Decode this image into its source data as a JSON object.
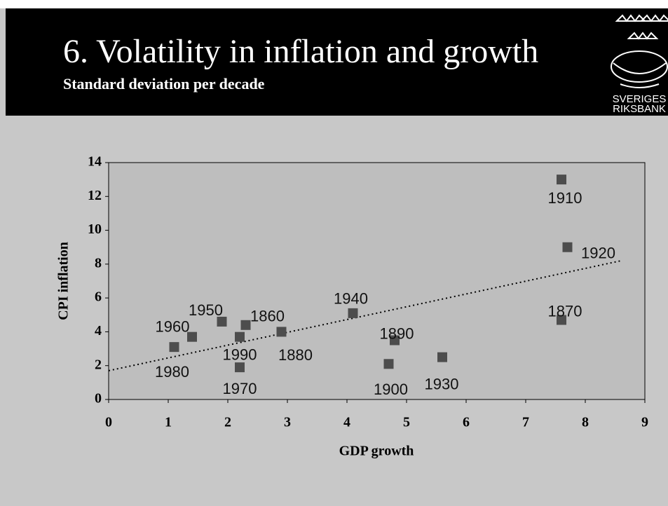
{
  "chart_data": {
    "type": "scatter",
    "title": "6. Volatility in inflation and growth",
    "subtitle": "Standard deviation per decade",
    "xlabel": "GDP growth",
    "ylabel": "CPI inflation",
    "point_labels": [
      "1910",
      "1920",
      "1870",
      "1940",
      "1890",
      "1900",
      "1930",
      "1880",
      "1860",
      "1950",
      "1990",
      "1970",
      "1960",
      "1980"
    ],
    "x": [
      7.6,
      7.7,
      7.6,
      4.1,
      4.8,
      4.7,
      5.6,
      2.9,
      2.3,
      1.9,
      2.2,
      2.2,
      1.4,
      1.1
    ],
    "y": [
      13.0,
      9.0,
      4.7,
      5.1,
      3.5,
      2.1,
      2.5,
      4.0,
      4.4,
      4.6,
      3.7,
      1.9,
      3.7,
      3.1
    ],
    "color": "#4d4d4d",
    "trendline": {
      "x": [
        0,
        8.6
      ],
      "y": [
        1.7,
        8.2
      ]
    },
    "xlim": [
      0,
      9
    ],
    "ylim": [
      0,
      14
    ],
    "xticks": [
      0,
      1,
      2,
      3,
      4,
      5,
      6,
      7,
      8,
      9
    ],
    "yticks": [
      0,
      2,
      4,
      6,
      8,
      10,
      12,
      14
    ]
  },
  "logo": {
    "lines": [
      "SVERIGES",
      "RIKSBANK"
    ]
  }
}
